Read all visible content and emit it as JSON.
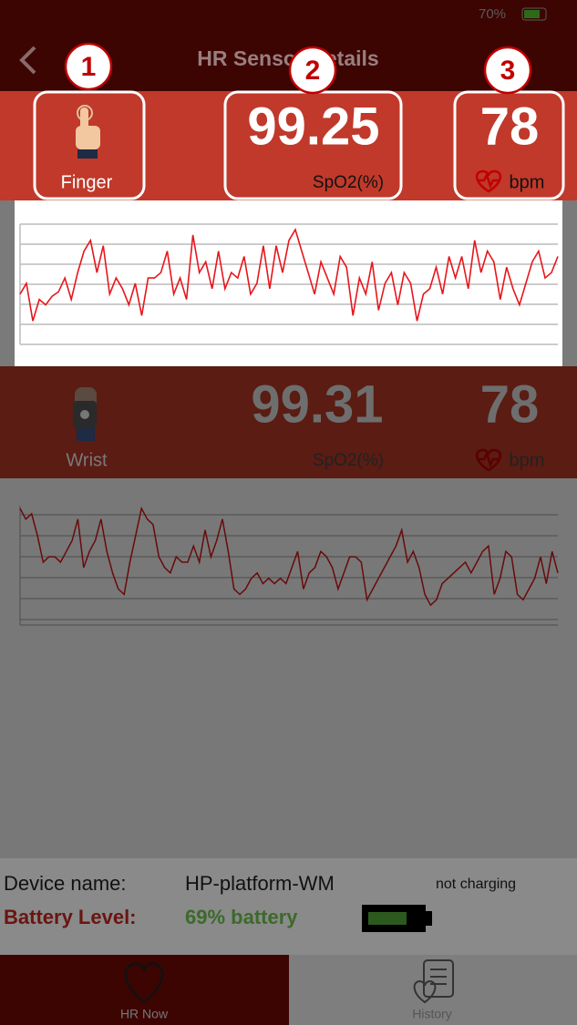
{
  "status_bar": {
    "battery": "70%"
  },
  "header": {
    "title": "HR Sensor Details"
  },
  "callouts": [
    "1",
    "2",
    "3"
  ],
  "finger": {
    "label": "Finger",
    "spo2": 99.25,
    "spo2_unit": "SpO2(%)",
    "heart_rate": 78,
    "hr_unit": "bpm",
    "waveform": [
      40,
      50,
      15,
      35,
      30,
      38,
      42,
      55,
      35,
      60,
      80,
      90,
      60,
      85,
      40,
      55,
      45,
      30,
      50,
      20,
      55,
      55,
      60,
      80,
      40,
      55,
      35,
      95,
      60,
      70,
      45,
      80,
      45,
      60,
      55,
      75,
      40,
      50,
      85,
      45,
      85,
      60,
      90,
      100,
      80,
      60,
      40,
      70,
      55,
      40,
      75,
      65,
      20,
      55,
      40,
      70,
      25,
      50,
      60,
      30,
      60,
      50,
      15,
      40,
      45,
      65,
      40,
      75,
      55,
      75,
      45,
      90,
      60,
      80,
      70,
      35,
      65,
      45,
      30,
      50,
      70,
      80,
      55,
      60,
      75
    ]
  },
  "wrist": {
    "label": "Wrist",
    "spo2": 99.31,
    "spo2_unit": "SpO2(%)",
    "heart_rate": 78,
    "hr_unit": "bpm",
    "waveform": [
      100,
      90,
      95,
      75,
      50,
      55,
      55,
      50,
      60,
      70,
      90,
      45,
      60,
      70,
      90,
      60,
      40,
      25,
      20,
      50,
      75,
      100,
      90,
      85,
      55,
      45,
      40,
      55,
      50,
      50,
      65,
      50,
      80,
      55,
      70,
      90,
      60,
      25,
      20,
      25,
      35,
      40,
      30,
      35,
      30,
      35,
      30,
      45,
      60,
      25,
      40,
      45,
      60,
      55,
      45,
      25,
      40,
      55,
      55,
      50,
      15,
      25,
      35,
      45,
      55,
      65,
      80,
      50,
      60,
      45,
      20,
      10,
      15,
      30,
      35,
      40,
      45,
      50,
      40,
      50,
      60,
      65,
      20,
      35,
      60,
      55,
      20,
      15,
      25,
      35,
      55,
      30,
      60,
      40
    ]
  },
  "device": {
    "name_label": "Device name:",
    "name": "HP-platform-WM",
    "charging": "not charging",
    "battery_label": "Battery Level:",
    "battery": "69% battery"
  },
  "tabs": [
    "HR Now",
    "History"
  ]
}
